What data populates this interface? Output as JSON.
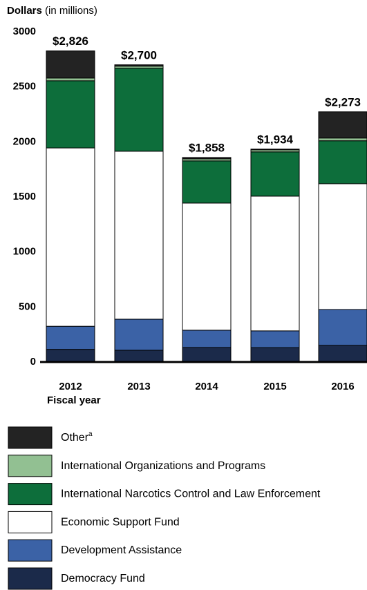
{
  "chart_data": {
    "type": "stacked_bar",
    "title": "Dollars",
    "title_unit": "(in millions)",
    "x_label": "Fiscal year",
    "categories": [
      "2012",
      "2013",
      "2014",
      "2015",
      "2016"
    ],
    "series": [
      {
        "name": "Democracy Fund",
        "color": "#1b2a4a",
        "values": [
          115,
          107,
          132,
          130,
          151
        ]
      },
      {
        "name": "Development Assistance",
        "color": "#3b62a6",
        "values": [
          210,
          282,
          157,
          153,
          326
        ]
      },
      {
        "name": "Economic Support Fund",
        "color": "#ffffff",
        "values": [
          1620,
          1526,
          1155,
          1224,
          1143
        ]
      },
      {
        "name": "International Narcotics Control and Law Enforcement",
        "color": "#0d6e3b",
        "values": [
          610,
          754,
          383,
          402,
          390
        ]
      },
      {
        "name": "International Organizations and Programs",
        "color": "#92c092",
        "values": [
          25,
          19,
          19,
          19,
          25
        ]
      },
      {
        "name": "Other",
        "note": "a",
        "color": "#232323",
        "values": [
          246,
          12,
          12,
          6,
          238
        ]
      }
    ],
    "totals": [
      2826,
      2700,
      1858,
      1934,
      2273
    ],
    "total_labels": [
      "$2,826",
      "$2,700",
      "$1,858",
      "$1,934",
      "$2,273"
    ],
    "ylim": [
      0,
      3000
    ],
    "yticks": [
      0,
      500,
      1000,
      1500,
      2000,
      2500,
      3000
    ],
    "grid": false
  }
}
